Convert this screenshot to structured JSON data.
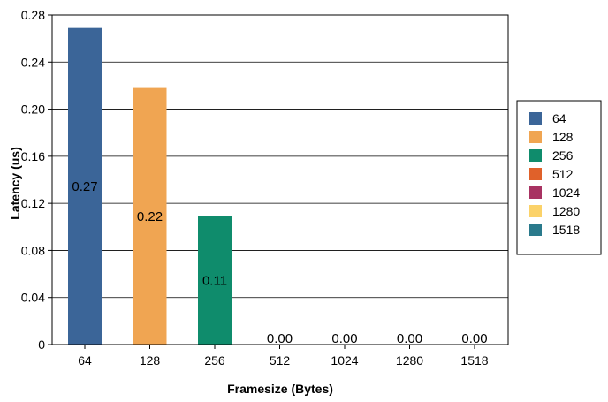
{
  "chart_data": {
    "type": "bar",
    "xlabel": "Framesize (Bytes)",
    "ylabel": "Latency (us)",
    "categories": [
      "64",
      "128",
      "256",
      "512",
      "1024",
      "1280",
      "1518"
    ],
    "values": [
      0.269,
      0.218,
      0.109,
      0.0,
      0.0,
      0.0,
      0.0
    ],
    "data_labels": [
      "0.27",
      "0.22",
      "0.11",
      "0.00",
      "0.00",
      "0.00",
      "0.00"
    ],
    "ylim": [
      0,
      0.28
    ],
    "yticks": [
      0,
      0.04,
      0.08,
      0.12,
      0.16,
      0.2,
      0.24,
      0.28
    ],
    "ytick_labels": [
      "0",
      "0.04",
      "0.08",
      "0.12",
      "0.16",
      "0.20",
      "0.24",
      "0.28"
    ],
    "colors": [
      "#3b6598",
      "#f0a552",
      "#0f8c6c",
      "#e0612a",
      "#a83262",
      "#fbd269",
      "#2a7a8c"
    ],
    "legend": [
      "64",
      "128",
      "256",
      "512",
      "1024",
      "1280",
      "1518"
    ],
    "legend_position": "right",
    "grid": true
  }
}
